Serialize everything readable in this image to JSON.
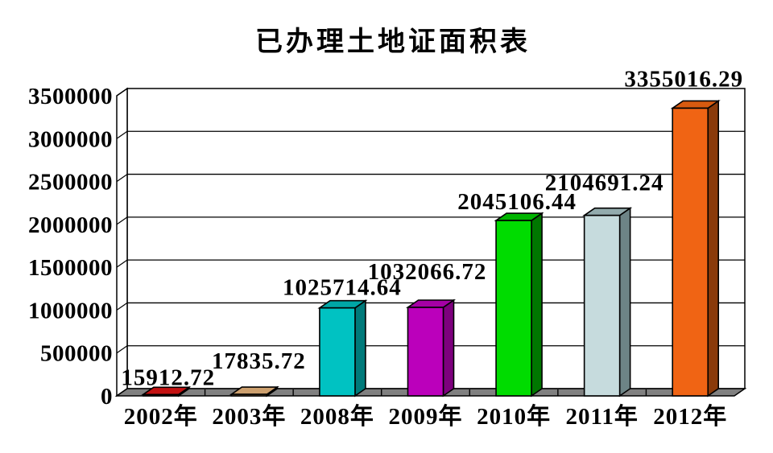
{
  "chart_data": {
    "type": "bar",
    "title": "已办理土地证面积表",
    "projection": "3d-oblique",
    "categories": [
      "2002年",
      "2003年",
      "2008年",
      "2009年",
      "2010年",
      "2011年",
      "2012年"
    ],
    "values": [
      15912.72,
      17835.72,
      1025714.64,
      1032066.72,
      2045106.44,
      2104691.24,
      3355016.29
    ],
    "value_labels": [
      "15912.72",
      "17835.72",
      "1025714.64",
      "1032066.72",
      "2045106.44",
      "2104691.24",
      "3355016.29"
    ],
    "xlabel": "",
    "ylabel": "",
    "ylim": [
      0,
      3500000
    ],
    "y_tick_step": 500000,
    "y_tick_labels": [
      "0",
      "500000",
      "1000000",
      "1500000",
      "2000000",
      "2500000",
      "3000000",
      "3500000"
    ],
    "grid": true,
    "legend": "none",
    "bar_colors": [
      {
        "front": "#B01010",
        "side": "#6E0909",
        "top": "#C41212"
      },
      {
        "front": "#C49468",
        "side": "#8A6138",
        "top": "#CDA06E"
      },
      {
        "front": "#00C2C2",
        "side": "#007A7A",
        "top": "#00A6A6"
      },
      {
        "front": "#BB00BB",
        "side": "#7D007D",
        "top": "#A500A5"
      },
      {
        "front": "#00DC00",
        "side": "#007600",
        "top": "#00B400"
      },
      {
        "front": "#C6DBDD",
        "side": "#6D8486",
        "top": "#93ABAD"
      },
      {
        "front": "#F06414",
        "side": "#8A3A0A",
        "top": "#D75A10"
      }
    ],
    "wall_color": "#FFFFFF",
    "floor_color": "#808080",
    "axis_color": "#000000",
    "text_color": "#000000"
  }
}
